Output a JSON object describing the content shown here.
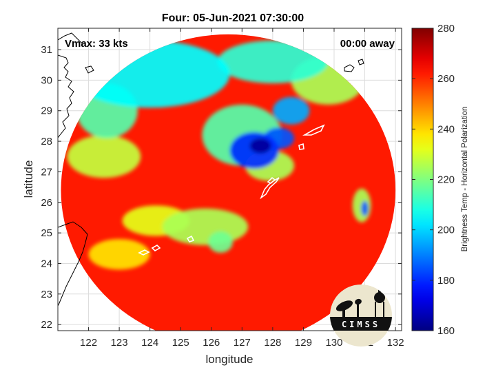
{
  "chart_data": {
    "type": "heatmap",
    "title": "Four: 05-Jun-2021 07:30:00",
    "xlabel": "longitude",
    "ylabel": "latitude",
    "xlim": [
      121.0,
      132.2
    ],
    "ylim": [
      21.8,
      31.7
    ],
    "xticks": [
      122,
      123,
      124,
      125,
      126,
      127,
      128,
      129,
      130,
      131,
      132
    ],
    "yticks": [
      22,
      23,
      24,
      25,
      26,
      27,
      28,
      29,
      30,
      31
    ],
    "grid": true,
    "swath": {
      "center_lon": 126.55,
      "center_lat": 26.4,
      "radius_lon": 5.45,
      "radius_lat": 5.1
    },
    "colorbar": {
      "label": "Brightness Temp - Horizontal Polarization",
      "min": 160,
      "max": 280,
      "ticks": [
        160,
        180,
        200,
        220,
        240,
        260,
        280
      ],
      "colormap": "jet"
    },
    "background_tb": 262,
    "features": [
      {
        "lon": 127.6,
        "lat": 27.85,
        "tb": 163,
        "r_lon": 0.35,
        "r_lat": 0.25
      },
      {
        "lon": 127.4,
        "lat": 27.7,
        "tb": 180,
        "r_lon": 0.8,
        "r_lat": 0.6
      },
      {
        "lon": 128.2,
        "lat": 28.1,
        "tb": 185,
        "r_lon": 0.5,
        "r_lat": 0.35
      },
      {
        "lon": 128.6,
        "lat": 29.0,
        "tb": 195,
        "r_lon": 0.6,
        "r_lat": 0.45
      },
      {
        "lon": 127.0,
        "lat": 28.2,
        "tb": 215,
        "r_lon": 1.3,
        "r_lat": 1.0
      },
      {
        "lon": 127.9,
        "lat": 27.2,
        "tb": 225,
        "r_lon": 0.8,
        "r_lat": 0.5
      },
      {
        "lon": 124.0,
        "lat": 30.2,
        "tb": 205,
        "r_lon": 2.6,
        "r_lat": 1.1
      },
      {
        "lon": 128.0,
        "lat": 30.6,
        "tb": 210,
        "r_lon": 1.8,
        "r_lat": 0.7
      },
      {
        "lon": 129.8,
        "lat": 30.0,
        "tb": 225,
        "r_lon": 1.2,
        "r_lat": 0.8
      },
      {
        "lon": 122.6,
        "lat": 29.0,
        "tb": 215,
        "r_lon": 1.0,
        "r_lat": 0.9
      },
      {
        "lon": 122.5,
        "lat": 27.5,
        "tb": 228,
        "r_lon": 1.2,
        "r_lat": 0.7
      },
      {
        "lon": 125.8,
        "lat": 25.2,
        "tb": 225,
        "r_lon": 1.4,
        "r_lat": 0.6
      },
      {
        "lon": 126.3,
        "lat": 24.7,
        "tb": 218,
        "r_lon": 0.4,
        "r_lat": 0.35
      },
      {
        "lon": 124.2,
        "lat": 25.4,
        "tb": 232,
        "r_lon": 1.1,
        "r_lat": 0.5
      },
      {
        "lon": 123.0,
        "lat": 24.3,
        "tb": 238,
        "r_lon": 1.0,
        "r_lat": 0.5
      },
      {
        "lon": 131.0,
        "lat": 25.8,
        "tb": 185,
        "r_lon": 0.12,
        "r_lat": 0.25
      },
      {
        "lon": 130.9,
        "lat": 25.9,
        "tb": 225,
        "r_lon": 0.3,
        "r_lat": 0.55
      }
    ],
    "annotations": {
      "vmax": "Vmax: 33 kts",
      "time_away": "00:00 away"
    },
    "logo_text": "CIMSS"
  }
}
